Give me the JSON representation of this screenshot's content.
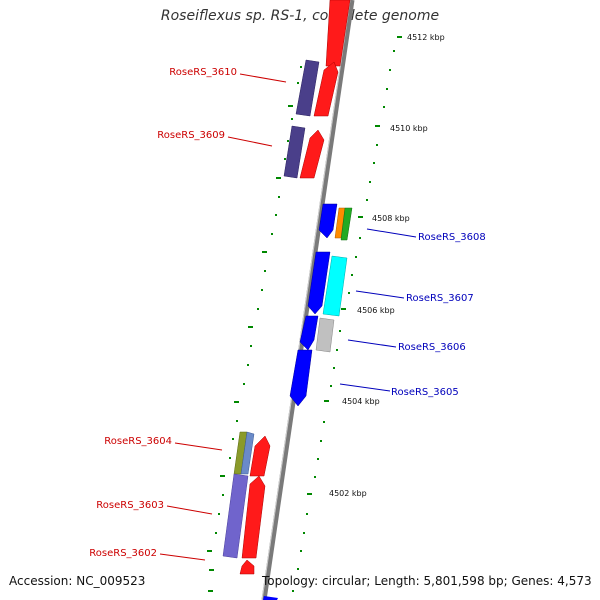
{
  "title": "Roseiflexus sp. RS-1, complete genome",
  "accession": "Accession: NC_009523",
  "summary": "Topology: circular; Length: 5,801,598 bp; Genes: 4,573",
  "ticks": [
    "4512 kbp",
    "4510 kbp",
    "4508 kbp",
    "4506 kbp",
    "4504 kbp",
    "4502 kbp"
  ],
  "genes_reverse": [
    {
      "label": "RoseRS_3610",
      "color": "#cc0000"
    },
    {
      "label": "RoseRS_3609",
      "color": "#cc0000"
    },
    {
      "label": "RoseRS_3604",
      "color": "#cc0000"
    },
    {
      "label": "RoseRS_3603",
      "color": "#cc0000"
    },
    {
      "label": "RoseRS_3602",
      "color": "#cc0000"
    }
  ],
  "genes_forward": [
    {
      "label": "RoseRS_3608",
      "color": "#0000bb"
    },
    {
      "label": "RoseRS_3607",
      "color": "#0000bb"
    },
    {
      "label": "RoseRS_3606",
      "color": "#0000bb"
    },
    {
      "label": "RoseRS_3605",
      "color": "#0000bb"
    }
  ],
  "colors": {
    "backbone": "#8a8a8a",
    "cds_reverse": "#ff0000",
    "cds_forward": "#0000ff",
    "tick": "#008800"
  }
}
